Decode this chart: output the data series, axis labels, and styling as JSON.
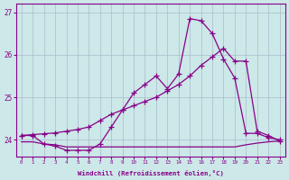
{
  "xlabel": "Windchill (Refroidissement éolien,°C)",
  "x_values": [
    0,
    1,
    2,
    3,
    4,
    5,
    6,
    7,
    8,
    9,
    10,
    11,
    12,
    13,
    14,
    15,
    16,
    17,
    18,
    19,
    20,
    21,
    22,
    23
  ],
  "line1_y": [
    24.1,
    24.1,
    23.9,
    23.85,
    23.75,
    23.75,
    23.75,
    23.9,
    24.3,
    24.7,
    25.1,
    25.3,
    25.5,
    25.2,
    25.55,
    26.85,
    26.8,
    26.5,
    25.9,
    25.45,
    24.15,
    24.15,
    24.05,
    24.0
  ],
  "line2_y": [
    23.95,
    23.95,
    23.9,
    23.88,
    23.83,
    23.83,
    23.83,
    23.83,
    23.83,
    23.83,
    23.83,
    23.83,
    23.83,
    23.83,
    23.83,
    23.83,
    23.83,
    23.83,
    23.83,
    23.83,
    23.88,
    23.92,
    23.95,
    23.97
  ],
  "line3_y": [
    24.1,
    24.12,
    24.14,
    24.16,
    24.2,
    24.24,
    24.3,
    24.45,
    24.6,
    24.7,
    24.8,
    24.9,
    25.0,
    25.15,
    25.3,
    25.5,
    25.75,
    25.95,
    26.15,
    25.85,
    25.85,
    24.2,
    24.1,
    23.97
  ],
  "ylim": [
    23.6,
    27.2
  ],
  "yticks": [
    24,
    25,
    26,
    27
  ],
  "xlim": [
    -0.5,
    23.5
  ],
  "line_color": "#880088",
  "bg_color": "#cce8e8",
  "grid_color": "#aabbcc",
  "marker": "+"
}
